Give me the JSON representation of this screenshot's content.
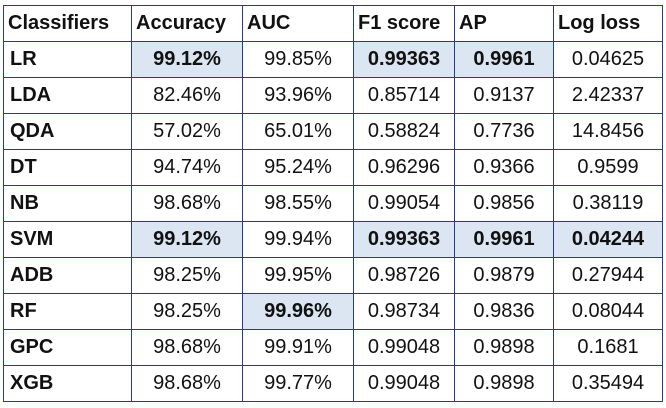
{
  "table": {
    "headers": [
      "Classifiers",
      "Accuracy",
      "AUC",
      "F1 score",
      "AP",
      "Log loss"
    ],
    "highlight_color": "#dce6f2",
    "border_color": "#1f3f8a",
    "rows": [
      {
        "name": "LR",
        "values": [
          "99.12%",
          "99.85%",
          "0.99363",
          "0.9961",
          "0.04625"
        ],
        "best": [
          true,
          false,
          true,
          true,
          false
        ]
      },
      {
        "name": "LDA",
        "values": [
          "82.46%",
          "93.96%",
          "0.85714",
          "0.9137",
          "2.42337"
        ],
        "best": [
          false,
          false,
          false,
          false,
          false
        ]
      },
      {
        "name": "QDA",
        "values": [
          "57.02%",
          "65.01%",
          "0.58824",
          "0.7736",
          "14.8456"
        ],
        "best": [
          false,
          false,
          false,
          false,
          false
        ]
      },
      {
        "name": "DT",
        "values": [
          "94.74%",
          "95.24%",
          "0.96296",
          "0.9366",
          "0.9599"
        ],
        "best": [
          false,
          false,
          false,
          false,
          false
        ]
      },
      {
        "name": "NB",
        "values": [
          "98.68%",
          "98.55%",
          "0.99054",
          "0.9856",
          "0.38119"
        ],
        "best": [
          false,
          false,
          false,
          false,
          false
        ]
      },
      {
        "name": "SVM",
        "values": [
          "99.12%",
          "99.94%",
          "0.99363",
          "0.9961",
          "0.04244"
        ],
        "best": [
          true,
          false,
          true,
          true,
          true
        ]
      },
      {
        "name": "ADB",
        "values": [
          "98.25%",
          "99.95%",
          "0.98726",
          "0.9879",
          "0.27944"
        ],
        "best": [
          false,
          false,
          false,
          false,
          false
        ]
      },
      {
        "name": "RF",
        "values": [
          "98.25%",
          "99.96%",
          "0.98734",
          "0.9836",
          "0.08044"
        ],
        "best": [
          false,
          true,
          false,
          false,
          false
        ]
      },
      {
        "name": "GPC",
        "values": [
          "98.68%",
          "99.91%",
          "0.99048",
          "0.9898",
          "0.1681"
        ],
        "best": [
          false,
          false,
          false,
          false,
          false
        ]
      },
      {
        "name": "XGB",
        "values": [
          "98.68%",
          "99.77%",
          "0.99048",
          "0.9898",
          "0.35494"
        ],
        "best": [
          false,
          false,
          false,
          false,
          false
        ]
      }
    ]
  }
}
